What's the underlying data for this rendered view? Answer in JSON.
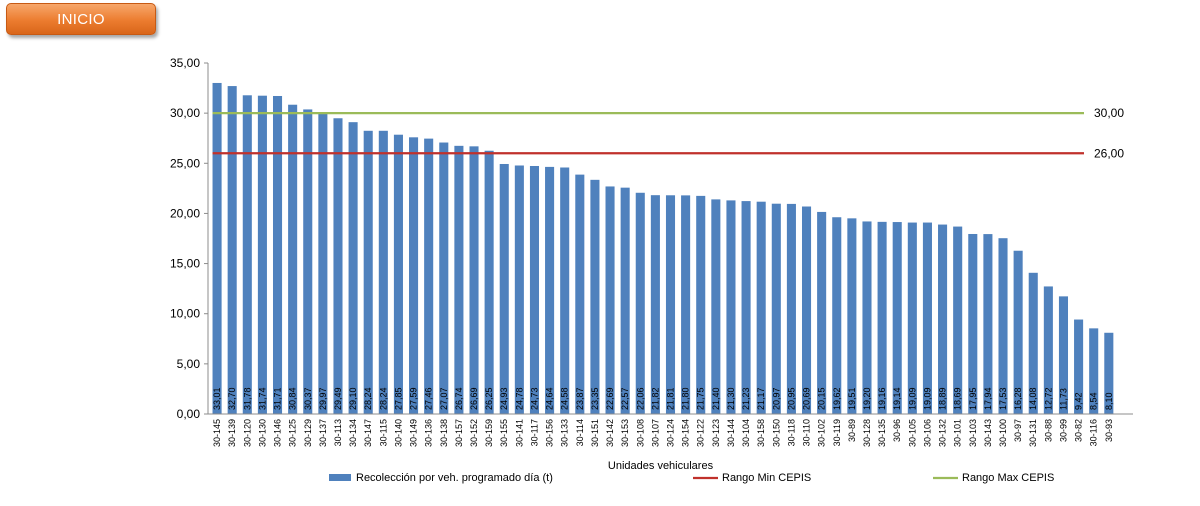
{
  "nav": {
    "inicio_label": "INICIO"
  },
  "colors": {
    "bar": "#4f81bd",
    "min_line": "#c0312b",
    "max_line": "#9bbb59",
    "button": "#ec7c2f"
  },
  "chart_data": {
    "type": "bar",
    "xlabel": "Unidades vehiculares",
    "ylabel": "",
    "ylim": [
      0,
      35
    ],
    "yticks": [
      "0,00",
      "5,00",
      "10,00",
      "15,00",
      "20,00",
      "25,00",
      "30,00",
      "35,00"
    ],
    "yticks_values": [
      0,
      5,
      10,
      15,
      20,
      25,
      30,
      35
    ],
    "categories": [
      "30-145",
      "30-139",
      "30-120",
      "30-130",
      "30-146",
      "30-125",
      "30-129",
      "30-137",
      "30-113",
      "30-134",
      "30-147",
      "30-115",
      "30-140",
      "30-149",
      "30-136",
      "30-138",
      "30-157",
      "30-152",
      "30-159",
      "30-155",
      "30-141",
      "30-117",
      "30-156",
      "30-133",
      "30-114",
      "30-151",
      "30-142",
      "30-153",
      "30-108",
      "30-107",
      "30-124",
      "30-154",
      "30-122",
      "30-123",
      "30-144",
      "30-104",
      "30-158",
      "30-150",
      "30-118",
      "30-110",
      "30-102",
      "30-119",
      "30-89",
      "30-128",
      "30-135",
      "30-96",
      "30-105",
      "30-106",
      "30-132",
      "30-101",
      "30-103",
      "30-143",
      "30-100",
      "30-97",
      "30-131",
      "30-88",
      "30-99",
      "30-82",
      "30-116",
      "30-93"
    ],
    "series": [
      {
        "name": "Recolección por veh. programado día (t)",
        "values": [
          33.01,
          32.7,
          31.78,
          31.74,
          31.71,
          30.84,
          30.37,
          29.97,
          29.49,
          29.1,
          28.24,
          28.24,
          27.85,
          27.59,
          27.46,
          27.07,
          26.74,
          26.69,
          26.25,
          24.93,
          24.78,
          24.73,
          24.64,
          24.58,
          23.87,
          23.35,
          22.69,
          22.57,
          22.06,
          21.82,
          21.81,
          21.8,
          21.75,
          21.4,
          21.3,
          21.23,
          21.17,
          20.97,
          20.95,
          20.69,
          20.15,
          19.62,
          19.51,
          19.2,
          19.16,
          19.14,
          19.09,
          19.09,
          18.89,
          18.69,
          17.95,
          17.94,
          17.53,
          16.28,
          14.08,
          12.72,
          11.73,
          9.42,
          8.54,
          8.1
        ],
        "value_labels": [
          "33,01",
          "32,70",
          "31,78",
          "31,74",
          "31,71",
          "30,84",
          "30,37",
          "29,97",
          "29,49",
          "29,10",
          "28,24",
          "28,24",
          "27,85",
          "27,59",
          "27,46",
          "27,07",
          "26,74",
          "26,69",
          "26,25",
          "24,93",
          "24,78",
          "24,73",
          "24,64",
          "24,58",
          "23,87",
          "23,35",
          "22,69",
          "22,57",
          "22,06",
          "21,82",
          "21,81",
          "21,80",
          "21,75",
          "21,40",
          "21,30",
          "21,23",
          "21,17",
          "20,97",
          "20,95",
          "20,69",
          "20,15",
          "19,62",
          "19,51",
          "19,20",
          "19,16",
          "19,14",
          "19,09",
          "19,09",
          "18,89",
          "18,69",
          "17,95",
          "17,94",
          "17,53",
          "16,28",
          "14,08",
          "12,72",
          "11,73",
          "9,42",
          "8,54",
          "8,10"
        ]
      }
    ],
    "reference_lines": [
      {
        "name": "Rango Min CEPIS",
        "value": 26,
        "label": "26,00",
        "color": "#c0312b"
      },
      {
        "name": "Rango Max CEPIS",
        "value": 30,
        "label": "30,00",
        "color": "#9bbb59"
      }
    ],
    "legend": {
      "placement": "bottom",
      "items": [
        "Recolección por veh. programado día (t)",
        "Rango Min CEPIS",
        "Rango Max CEPIS"
      ]
    },
    "grid": false
  }
}
